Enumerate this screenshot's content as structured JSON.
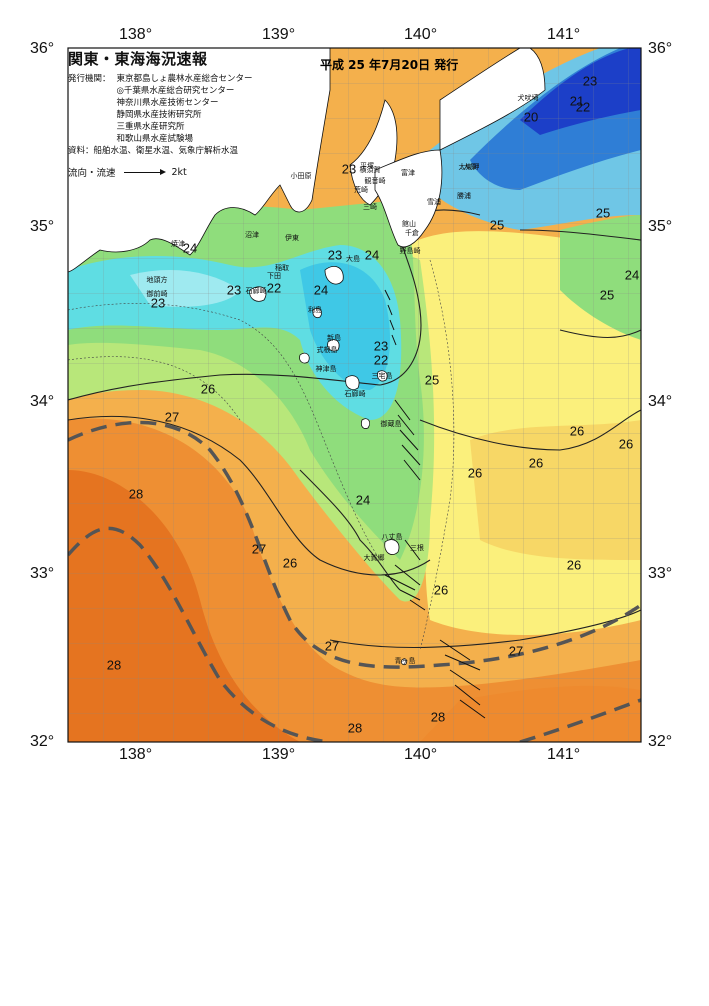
{
  "header": {
    "title": "関東・東海海況速報",
    "issue_date": "平成 25 年7月20日 発行"
  },
  "info": {
    "org_label": "発行機関：",
    "orgs": [
      "東京都島しょ農林水産総合センター",
      "◎千葉県水産総合研究センター",
      "神奈川県水産技術センター",
      "静岡県水産技術研究所",
      "三重県水産研究所",
      "和歌山県水産試験場"
    ],
    "source": "資料：船舶水温、衛星水温、気象庁解析水温",
    "legend_label": "流向・流速",
    "legend_speed": "2kt"
  },
  "axes": {
    "longitude_top": [
      "138°",
      "139°",
      "140°",
      "141°"
    ],
    "longitude_bottom": [
      "138°",
      "139°",
      "140°",
      "141°"
    ],
    "latitude_left": [
      "36°",
      "35°",
      "34°",
      "33°",
      "32°"
    ],
    "latitude_right": [
      "36°",
      "35°",
      "34°",
      "33°",
      "32°"
    ]
  },
  "temperature_labels": [
    "23",
    "21",
    "22",
    "20",
    "25",
    "25",
    "24",
    "25",
    "24",
    "23",
    "24",
    "23",
    "22",
    "23",
    "24",
    "23",
    "22",
    "26",
    "25",
    "27",
    "26",
    "26",
    "26",
    "28",
    "24",
    "27",
    "26",
    "26",
    "26",
    "27",
    "28",
    "28",
    "28"
  ],
  "place_names": [
    "平塚",
    "横須賀",
    "観音崎",
    "富津",
    "小田原",
    "荒崎",
    "三崎",
    "大原",
    "太東岬",
    "勝浦",
    "館山",
    "千倉",
    "沼津",
    "野島崎",
    "伊東",
    "稲取",
    "下田",
    "石廊崎",
    "大島",
    "利島",
    "新島",
    "式根島",
    "神津島",
    "三宅島",
    "御蔵島",
    "八丈島",
    "三根",
    "大賀郷",
    "青ヶ島",
    "犬吠埼",
    "焼津",
    "御前崎",
    "地頭方",
    "雪浦",
    "石廊崎"
  ],
  "colors": {
    "very_cold": "#1c3fc8",
    "cold": "#36a3e0",
    "cyan": "#5fdfe6",
    "green": "#93e07a",
    "yellow_green": "#d9ee7e",
    "yellow": "#fbf27a",
    "orange_light": "#f6bf55",
    "orange": "#f09234",
    "orange_deep": "#e46f1f",
    "land": "#ffffff",
    "kuroshio_axis": "#555555"
  }
}
